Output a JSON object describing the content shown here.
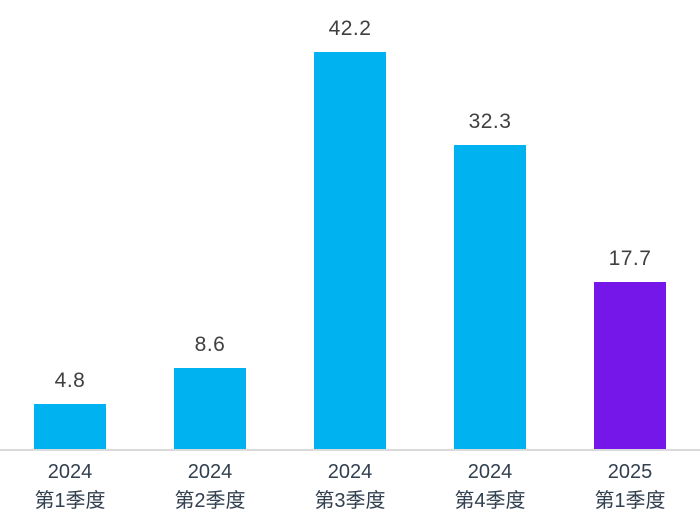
{
  "chart_data": {
    "type": "bar",
    "title": "",
    "xlabel": "",
    "ylabel": "",
    "categories": [
      "2024 第1季度",
      "2024 第2季度",
      "2024 第3季度",
      "2024 第4季度",
      "2025 第1季度"
    ],
    "category_lines": [
      [
        "2024",
        "第1季度"
      ],
      [
        "2024",
        "第2季度"
      ],
      [
        "2024",
        "第3季度"
      ],
      [
        "2024",
        "第4季度"
      ],
      [
        "2025",
        "第1季度"
      ]
    ],
    "values": [
      4.8,
      8.6,
      42.2,
      32.3,
      17.7
    ],
    "value_labels": [
      "4.8",
      "8.6",
      "42.2",
      "32.3",
      "17.7"
    ],
    "bar_colors": [
      "#00b2f0",
      "#00b2f0",
      "#00b2f0",
      "#00b2f0",
      "#7517e8"
    ],
    "ylim": [
      0,
      42.2
    ],
    "grid": false,
    "legend": false,
    "colors": {
      "bar_default": "#00b2f0",
      "bar_highlight": "#7517e8",
      "value_label": "#404040",
      "category_label": "#32404f",
      "axis_line": "#dadada",
      "background": "#ffffff"
    }
  }
}
